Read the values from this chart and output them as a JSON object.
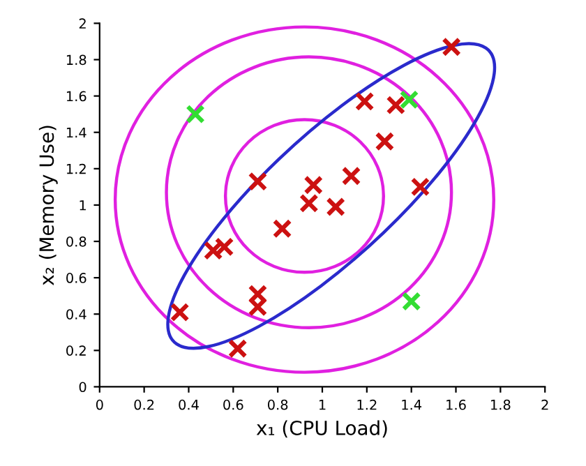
{
  "chart_data": {
    "type": "scatter",
    "xlabel": "x₁ (CPU Load)",
    "ylabel": "x₂ (Memory Use)",
    "xlim": [
      0,
      2
    ],
    "ylim": [
      0,
      2
    ],
    "xticks": [
      0,
      0.2,
      0.4,
      0.6,
      0.8,
      1,
      1.2,
      1.4,
      1.6,
      1.8,
      2
    ],
    "yticks": [
      0,
      0.2,
      0.4,
      0.6,
      0.8,
      1,
      1.2,
      1.4,
      1.6,
      1.8,
      2
    ],
    "grid": false,
    "legend": false,
    "series": [
      {
        "type": "scatter",
        "marker": "cross",
        "color": "#cc1111",
        "x": [
          0.36,
          0.51,
          0.56,
          0.71,
          0.82,
          0.71,
          0.71,
          0.62,
          0.96,
          0.94,
          1.06,
          1.13,
          1.19,
          1.33,
          1.28,
          1.44,
          1.58
        ],
        "values": [
          0.41,
          0.75,
          0.77,
          1.13,
          0.87,
          0.51,
          0.44,
          0.21,
          1.11,
          1.01,
          0.99,
          1.16,
          1.57,
          1.55,
          1.35,
          1.1,
          1.87
        ]
      },
      {
        "type": "scatter",
        "marker": "cross",
        "color": "#33dd33",
        "x": [
          0.43,
          1.39,
          1.4
        ],
        "values": [
          1.5,
          1.58,
          0.47
        ]
      }
    ]
  }
}
